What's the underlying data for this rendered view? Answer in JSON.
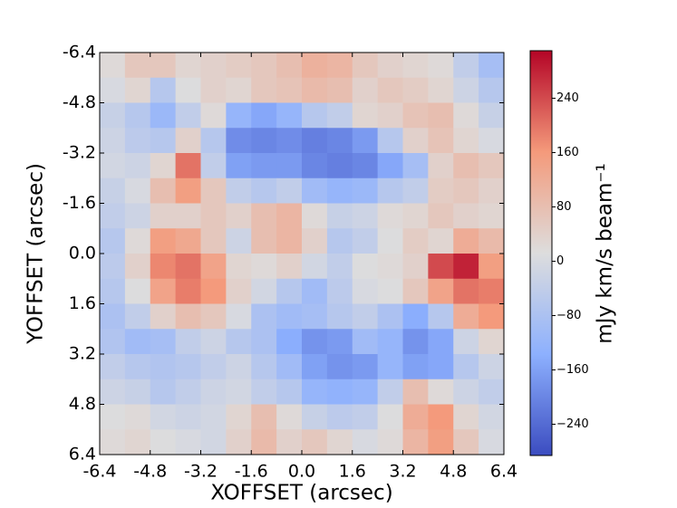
{
  "chart_data": {
    "type": "heatmap",
    "xlabel": "XOFFSET (arcsec)",
    "ylabel": "YOFFSET (arcsec)",
    "xlim": [
      -6.4,
      6.4
    ],
    "ylim": [
      6.4,
      -6.4
    ],
    "xticks": [
      -6.4,
      -4.8,
      -3.2,
      -1.6,
      {
        "value": 0,
        "label": "0.0"
      },
      1.6,
      3.2,
      4.8,
      6.4
    ],
    "yticks": [
      -6.4,
      -4.8,
      -3.2,
      -1.6,
      {
        "value": 0,
        "label": "0.0"
      },
      1.6,
      3.2,
      4.8,
      6.4
    ],
    "colormap": "coolwarm",
    "colorbar_label": "mJy km/s beam⁻¹",
    "clim": [
      -286,
      310
    ],
    "cticks": [
      {
        "value": -240,
        "label": "−240"
      },
      {
        "value": -160,
        "label": "−160"
      },
      {
        "value": -80,
        "label": "−80"
      },
      0,
      80,
      160,
      240
    ],
    "z": [
      [
        20,
        60,
        60,
        30,
        40,
        50,
        60,
        80,
        110,
        100,
        60,
        40,
        30,
        20,
        -40,
        -90
      ],
      [
        0,
        30,
        -60,
        10,
        40,
        30,
        60,
        70,
        90,
        80,
        40,
        60,
        50,
        30,
        -20,
        -60
      ],
      [
        -30,
        -60,
        -110,
        -40,
        20,
        -120,
        -150,
        -120,
        -60,
        -40,
        30,
        40,
        70,
        80,
        20,
        -30
      ],
      [
        -20,
        -50,
        -60,
        40,
        -60,
        -190,
        -200,
        -190,
        -210,
        -200,
        -170,
        -60,
        40,
        70,
        30,
        0
      ],
      [
        -10,
        -20,
        30,
        200,
        -40,
        -160,
        -170,
        -170,
        -200,
        -210,
        -200,
        -150,
        -90,
        40,
        80,
        60
      ],
      [
        -30,
        0,
        80,
        150,
        60,
        -40,
        -60,
        -40,
        -100,
        -120,
        -110,
        -60,
        -40,
        50,
        60,
        40
      ],
      [
        -40,
        -20,
        40,
        40,
        60,
        40,
        80,
        100,
        20,
        -30,
        -20,
        20,
        30,
        60,
        40,
        30
      ],
      [
        -60,
        20,
        150,
        130,
        60,
        -20,
        80,
        100,
        40,
        -60,
        -40,
        10,
        50,
        30,
        120,
        90
      ],
      [
        -50,
        40,
        180,
        200,
        140,
        30,
        20,
        40,
        -10,
        -40,
        10,
        20,
        40,
        240,
        280,
        150
      ],
      [
        -60,
        10,
        140,
        190,
        160,
        40,
        -10,
        -60,
        -100,
        -50,
        0,
        10,
        60,
        140,
        200,
        190
      ],
      [
        -80,
        -40,
        40,
        80,
        60,
        0,
        -80,
        -100,
        -90,
        -60,
        -40,
        -80,
        -140,
        -60,
        120,
        160
      ],
      [
        -70,
        -100,
        -90,
        -40,
        -20,
        -60,
        -80,
        -140,
        -180,
        -170,
        -100,
        -120,
        -180,
        -150,
        -20,
        30
      ],
      [
        -40,
        -60,
        -70,
        -60,
        -40,
        -20,
        -60,
        -100,
        -160,
        -180,
        -170,
        -120,
        -160,
        -150,
        -60,
        -20
      ],
      [
        -20,
        -30,
        -60,
        -40,
        -20,
        -10,
        -40,
        -60,
        -120,
        -130,
        -120,
        -40,
        80,
        20,
        -20,
        -40
      ],
      [
        10,
        20,
        -10,
        -20,
        -10,
        30,
        80,
        20,
        -30,
        -50,
        -40,
        10,
        120,
        160,
        30,
        -10
      ],
      [
        20,
        30,
        10,
        0,
        -10,
        40,
        90,
        40,
        60,
        30,
        0,
        20,
        100,
        150,
        60,
        0
      ]
    ]
  }
}
